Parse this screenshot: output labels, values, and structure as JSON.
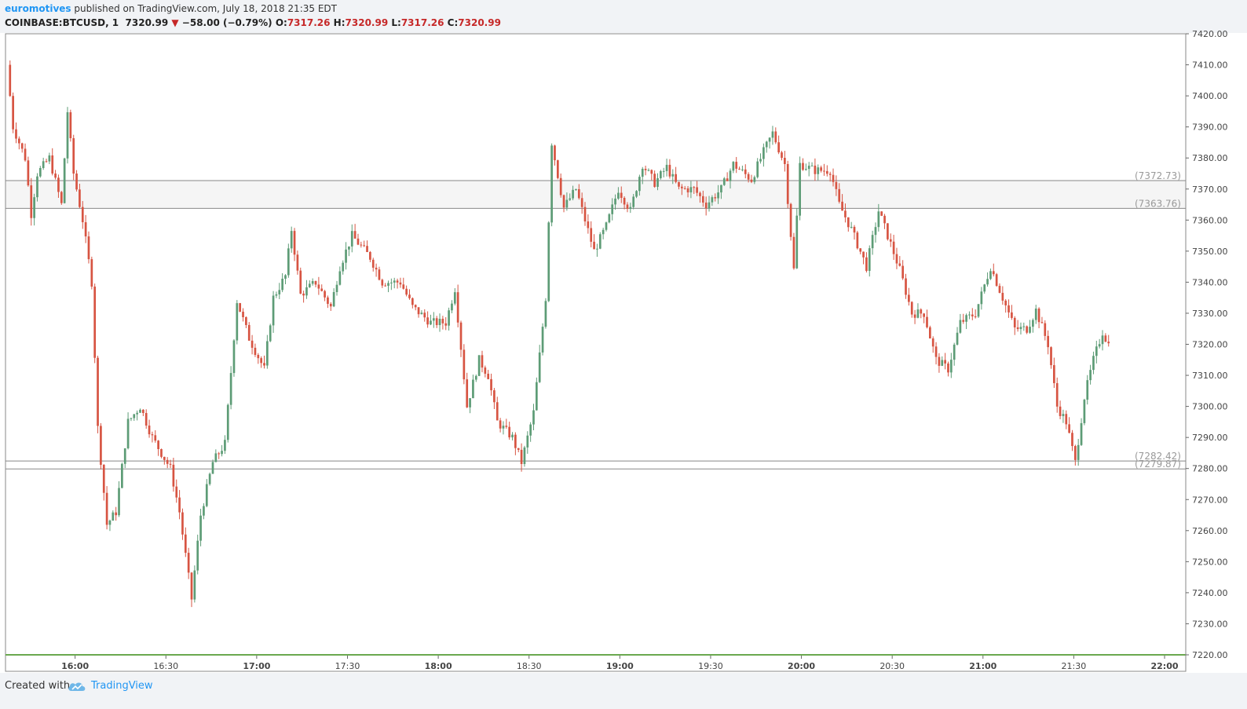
{
  "header": {
    "author": "euromotives",
    "published_text": " published on TradingView.com, July 18, 2018 21:35 EDT",
    "symbol": "COINBASE:BTCUSD, 1",
    "last": "7320.99",
    "change": "−58.00 (−0.79%)",
    "o_label": "O:",
    "o_value": "7317.26",
    "h_label": "H:",
    "h_value": "7320.99",
    "l_label": "L:",
    "l_value": "7317.26",
    "c_label": "C:",
    "c_value": "7320.99"
  },
  "footer": {
    "created_with": "Created with",
    "brand": "TradingView"
  },
  "colors": {
    "up": "#5d9c76",
    "down": "#d75442",
    "grid": "#e6e6e6",
    "hline": "#888888",
    "zone": "#f5f5f5"
  },
  "chart_data": {
    "type": "candlestick",
    "title": "",
    "x_ticks": [
      "16:00",
      "16:30",
      "17:00",
      "17:30",
      "18:00",
      "18:30",
      "19:00",
      "19:30",
      "20:00",
      "20:30",
      "21:00",
      "21:30",
      "22:00"
    ],
    "y_ticks": [
      "7420.00",
      "7410.00",
      "7400.00",
      "7390.00",
      "7380.00",
      "7370.00",
      "7360.00",
      "7350.00",
      "7340.00",
      "7330.00",
      "7320.00",
      "7310.00",
      "7300.00",
      "7290.00",
      "7280.00",
      "7270.00",
      "7260.00",
      "7250.00",
      "7240.00",
      "7230.00",
      "7220.00"
    ],
    "ylim": [
      7220,
      7420
    ],
    "x_range_minutes": [
      "15:37",
      "22:07"
    ],
    "horizontal_levels": [
      {
        "value": 7372.73,
        "label": "(7372.73)"
      },
      {
        "value": 7363.76,
        "label": "(7363.76)"
      },
      {
        "value": 7282.42,
        "label": "(7282.42)"
      },
      {
        "value": 7279.87,
        "label": "(7279.87)"
      }
    ],
    "shaded_zone": [
      7363.76,
      7372.73
    ],
    "path_keypoints": [
      [
        "15:38",
        7410
      ],
      [
        "15:40",
        7390
      ],
      [
        "15:44",
        7380
      ],
      [
        "15:46",
        7362
      ],
      [
        "15:48",
        7375
      ],
      [
        "15:52",
        7380
      ],
      [
        "15:56",
        7365
      ],
      [
        "15:58",
        7395
      ],
      [
        "16:00",
        7375
      ],
      [
        "16:03",
        7360
      ],
      [
        "16:06",
        7340
      ],
      [
        "16:08",
        7293
      ],
      [
        "16:11",
        7262
      ],
      [
        "16:14",
        7266
      ],
      [
        "16:18",
        7295
      ],
      [
        "16:22",
        7300
      ],
      [
        "16:26",
        7290
      ],
      [
        "16:32",
        7280
      ],
      [
        "16:35",
        7266
      ],
      [
        "16:39",
        7238
      ],
      [
        "16:42",
        7265
      ],
      [
        "16:46",
        7282
      ],
      [
        "16:50",
        7288
      ],
      [
        "16:54",
        7334
      ],
      [
        "16:58",
        7322
      ],
      [
        "17:03",
        7312
      ],
      [
        "17:06",
        7335
      ],
      [
        "17:10",
        7342
      ],
      [
        "17:12",
        7357
      ],
      [
        "17:15",
        7336
      ],
      [
        "17:20",
        7340
      ],
      [
        "17:25",
        7332
      ],
      [
        "17:28",
        7345
      ],
      [
        "17:32",
        7355
      ],
      [
        "17:38",
        7348
      ],
      [
        "17:42",
        7340
      ],
      [
        "17:48",
        7340
      ],
      [
        "17:52",
        7332
      ],
      [
        "17:58",
        7327
      ],
      [
        "18:03",
        7327
      ],
      [
        "18:06",
        7338
      ],
      [
        "18:10",
        7300
      ],
      [
        "18:14",
        7315
      ],
      [
        "18:17",
        7310
      ],
      [
        "18:20",
        7295
      ],
      [
        "18:25",
        7290
      ],
      [
        "18:28",
        7282
      ],
      [
        "18:32",
        7298
      ],
      [
        "18:36",
        7335
      ],
      [
        "18:38",
        7385
      ],
      [
        "18:42",
        7364
      ],
      [
        "18:46",
        7370
      ],
      [
        "18:52",
        7350
      ],
      [
        "18:56",
        7358
      ],
      [
        "19:00",
        7370
      ],
      [
        "19:04",
        7363
      ],
      [
        "19:08",
        7378
      ],
      [
        "19:12",
        7372
      ],
      [
        "19:16",
        7377
      ],
      [
        "19:20",
        7370
      ],
      [
        "19:25",
        7370
      ],
      [
        "19:29",
        7365
      ],
      [
        "19:34",
        7370
      ],
      [
        "19:38",
        7378
      ],
      [
        "19:44",
        7373
      ],
      [
        "19:48",
        7382
      ],
      [
        "19:51",
        7388
      ],
      [
        "19:55",
        7378
      ],
      [
        "19:58",
        7344
      ],
      [
        "20:00",
        7378
      ],
      [
        "20:05",
        7376
      ],
      [
        "20:10",
        7376
      ],
      [
        "20:13",
        7365
      ],
      [
        "20:17",
        7357
      ],
      [
        "20:22",
        7345
      ],
      [
        "20:26",
        7363
      ],
      [
        "20:29",
        7355
      ],
      [
        "20:33",
        7344
      ],
      [
        "20:37",
        7330
      ],
      [
        "20:41",
        7330
      ],
      [
        "20:45",
        7315
      ],
      [
        "20:49",
        7312
      ],
      [
        "20:53",
        7327
      ],
      [
        "20:58",
        7330
      ],
      [
        "21:03",
        7345
      ],
      [
        "21:07",
        7335
      ],
      [
        "21:11",
        7325
      ],
      [
        "21:15",
        7325
      ],
      [
        "21:18",
        7331
      ],
      [
        "21:22",
        7320
      ],
      [
        "21:25",
        7300
      ],
      [
        "21:28",
        7295
      ],
      [
        "21:31",
        7282
      ],
      [
        "21:34",
        7303
      ],
      [
        "21:37",
        7315
      ],
      [
        "21:40",
        7324
      ],
      [
        "21:42",
        7320
      ]
    ]
  }
}
